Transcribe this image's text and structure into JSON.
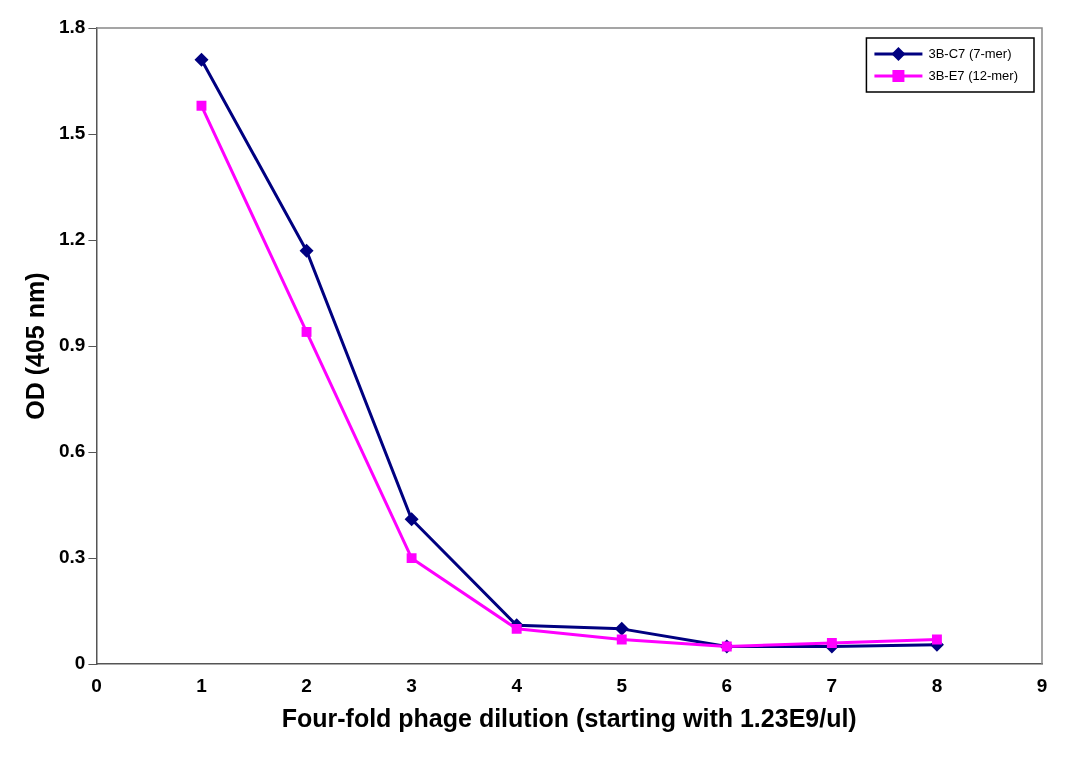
{
  "chart_data": {
    "type": "line",
    "xlabel": "Four-fold phage dilution (starting with 1.23E9/ul)",
    "ylabel": "OD (405 nm)",
    "x": [
      1,
      2,
      3,
      4,
      5,
      6,
      7,
      8
    ],
    "series": [
      {
        "name": "3B-C7 (7-mer)",
        "color": "#000080",
        "marker": "diamond",
        "values": [
          1.71,
          1.17,
          0.41,
          0.11,
          0.1,
          0.05,
          0.05,
          0.055
        ]
      },
      {
        "name": "3B-E7 (12-mer)",
        "color": "#ff00ff",
        "marker": "square",
        "values": [
          1.58,
          0.94,
          0.3,
          0.1,
          0.07,
          0.05,
          0.06,
          0.07
        ]
      }
    ],
    "xlim": [
      0,
      9
    ],
    "xticks": [
      0,
      1,
      2,
      3,
      4,
      5,
      6,
      7,
      8,
      9
    ],
    "ylim": [
      0,
      1.8
    ],
    "yticks": [
      0,
      0.3,
      0.6,
      0.9,
      1.2,
      1.5,
      1.8
    ],
    "grid": false,
    "legend": "top right",
    "line_style": "solid"
  }
}
